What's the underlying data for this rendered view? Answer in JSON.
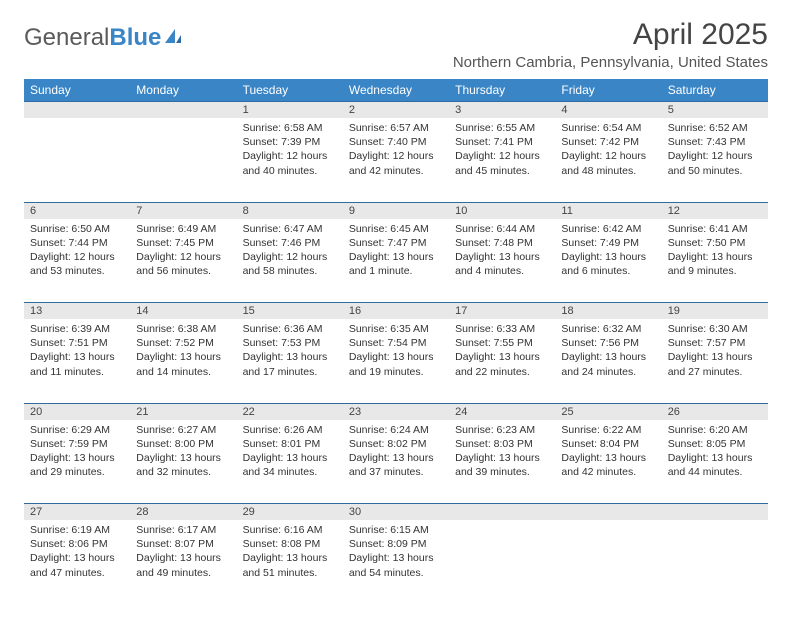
{
  "brand": {
    "part1": "General",
    "part2": "Blue"
  },
  "title": "April 2025",
  "location": "Northern Cambria, Pennsylvania, United States",
  "colors": {
    "header_bg": "#3a85c6",
    "header_text": "#ffffff",
    "daynum_bg": "#e8e8e8",
    "row_border": "#2f6aa0",
    "body_text": "#333333",
    "title_text": "#444444"
  },
  "day_headers": [
    "Sunday",
    "Monday",
    "Tuesday",
    "Wednesday",
    "Thursday",
    "Friday",
    "Saturday"
  ],
  "weeks": [
    [
      null,
      null,
      {
        "n": "1",
        "sr": "Sunrise: 6:58 AM",
        "ss": "Sunset: 7:39 PM",
        "dl": "Daylight: 12 hours and 40 minutes."
      },
      {
        "n": "2",
        "sr": "Sunrise: 6:57 AM",
        "ss": "Sunset: 7:40 PM",
        "dl": "Daylight: 12 hours and 42 minutes."
      },
      {
        "n": "3",
        "sr": "Sunrise: 6:55 AM",
        "ss": "Sunset: 7:41 PM",
        "dl": "Daylight: 12 hours and 45 minutes."
      },
      {
        "n": "4",
        "sr": "Sunrise: 6:54 AM",
        "ss": "Sunset: 7:42 PM",
        "dl": "Daylight: 12 hours and 48 minutes."
      },
      {
        "n": "5",
        "sr": "Sunrise: 6:52 AM",
        "ss": "Sunset: 7:43 PM",
        "dl": "Daylight: 12 hours and 50 minutes."
      }
    ],
    [
      {
        "n": "6",
        "sr": "Sunrise: 6:50 AM",
        "ss": "Sunset: 7:44 PM",
        "dl": "Daylight: 12 hours and 53 minutes."
      },
      {
        "n": "7",
        "sr": "Sunrise: 6:49 AM",
        "ss": "Sunset: 7:45 PM",
        "dl": "Daylight: 12 hours and 56 minutes."
      },
      {
        "n": "8",
        "sr": "Sunrise: 6:47 AM",
        "ss": "Sunset: 7:46 PM",
        "dl": "Daylight: 12 hours and 58 minutes."
      },
      {
        "n": "9",
        "sr": "Sunrise: 6:45 AM",
        "ss": "Sunset: 7:47 PM",
        "dl": "Daylight: 13 hours and 1 minute."
      },
      {
        "n": "10",
        "sr": "Sunrise: 6:44 AM",
        "ss": "Sunset: 7:48 PM",
        "dl": "Daylight: 13 hours and 4 minutes."
      },
      {
        "n": "11",
        "sr": "Sunrise: 6:42 AM",
        "ss": "Sunset: 7:49 PM",
        "dl": "Daylight: 13 hours and 6 minutes."
      },
      {
        "n": "12",
        "sr": "Sunrise: 6:41 AM",
        "ss": "Sunset: 7:50 PM",
        "dl": "Daylight: 13 hours and 9 minutes."
      }
    ],
    [
      {
        "n": "13",
        "sr": "Sunrise: 6:39 AM",
        "ss": "Sunset: 7:51 PM",
        "dl": "Daylight: 13 hours and 11 minutes."
      },
      {
        "n": "14",
        "sr": "Sunrise: 6:38 AM",
        "ss": "Sunset: 7:52 PM",
        "dl": "Daylight: 13 hours and 14 minutes."
      },
      {
        "n": "15",
        "sr": "Sunrise: 6:36 AM",
        "ss": "Sunset: 7:53 PM",
        "dl": "Daylight: 13 hours and 17 minutes."
      },
      {
        "n": "16",
        "sr": "Sunrise: 6:35 AM",
        "ss": "Sunset: 7:54 PM",
        "dl": "Daylight: 13 hours and 19 minutes."
      },
      {
        "n": "17",
        "sr": "Sunrise: 6:33 AM",
        "ss": "Sunset: 7:55 PM",
        "dl": "Daylight: 13 hours and 22 minutes."
      },
      {
        "n": "18",
        "sr": "Sunrise: 6:32 AM",
        "ss": "Sunset: 7:56 PM",
        "dl": "Daylight: 13 hours and 24 minutes."
      },
      {
        "n": "19",
        "sr": "Sunrise: 6:30 AM",
        "ss": "Sunset: 7:57 PM",
        "dl": "Daylight: 13 hours and 27 minutes."
      }
    ],
    [
      {
        "n": "20",
        "sr": "Sunrise: 6:29 AM",
        "ss": "Sunset: 7:59 PM",
        "dl": "Daylight: 13 hours and 29 minutes."
      },
      {
        "n": "21",
        "sr": "Sunrise: 6:27 AM",
        "ss": "Sunset: 8:00 PM",
        "dl": "Daylight: 13 hours and 32 minutes."
      },
      {
        "n": "22",
        "sr": "Sunrise: 6:26 AM",
        "ss": "Sunset: 8:01 PM",
        "dl": "Daylight: 13 hours and 34 minutes."
      },
      {
        "n": "23",
        "sr": "Sunrise: 6:24 AM",
        "ss": "Sunset: 8:02 PM",
        "dl": "Daylight: 13 hours and 37 minutes."
      },
      {
        "n": "24",
        "sr": "Sunrise: 6:23 AM",
        "ss": "Sunset: 8:03 PM",
        "dl": "Daylight: 13 hours and 39 minutes."
      },
      {
        "n": "25",
        "sr": "Sunrise: 6:22 AM",
        "ss": "Sunset: 8:04 PM",
        "dl": "Daylight: 13 hours and 42 minutes."
      },
      {
        "n": "26",
        "sr": "Sunrise: 6:20 AM",
        "ss": "Sunset: 8:05 PM",
        "dl": "Daylight: 13 hours and 44 minutes."
      }
    ],
    [
      {
        "n": "27",
        "sr": "Sunrise: 6:19 AM",
        "ss": "Sunset: 8:06 PM",
        "dl": "Daylight: 13 hours and 47 minutes."
      },
      {
        "n": "28",
        "sr": "Sunrise: 6:17 AM",
        "ss": "Sunset: 8:07 PM",
        "dl": "Daylight: 13 hours and 49 minutes."
      },
      {
        "n": "29",
        "sr": "Sunrise: 6:16 AM",
        "ss": "Sunset: 8:08 PM",
        "dl": "Daylight: 13 hours and 51 minutes."
      },
      {
        "n": "30",
        "sr": "Sunrise: 6:15 AM",
        "ss": "Sunset: 8:09 PM",
        "dl": "Daylight: 13 hours and 54 minutes."
      },
      null,
      null,
      null
    ]
  ]
}
